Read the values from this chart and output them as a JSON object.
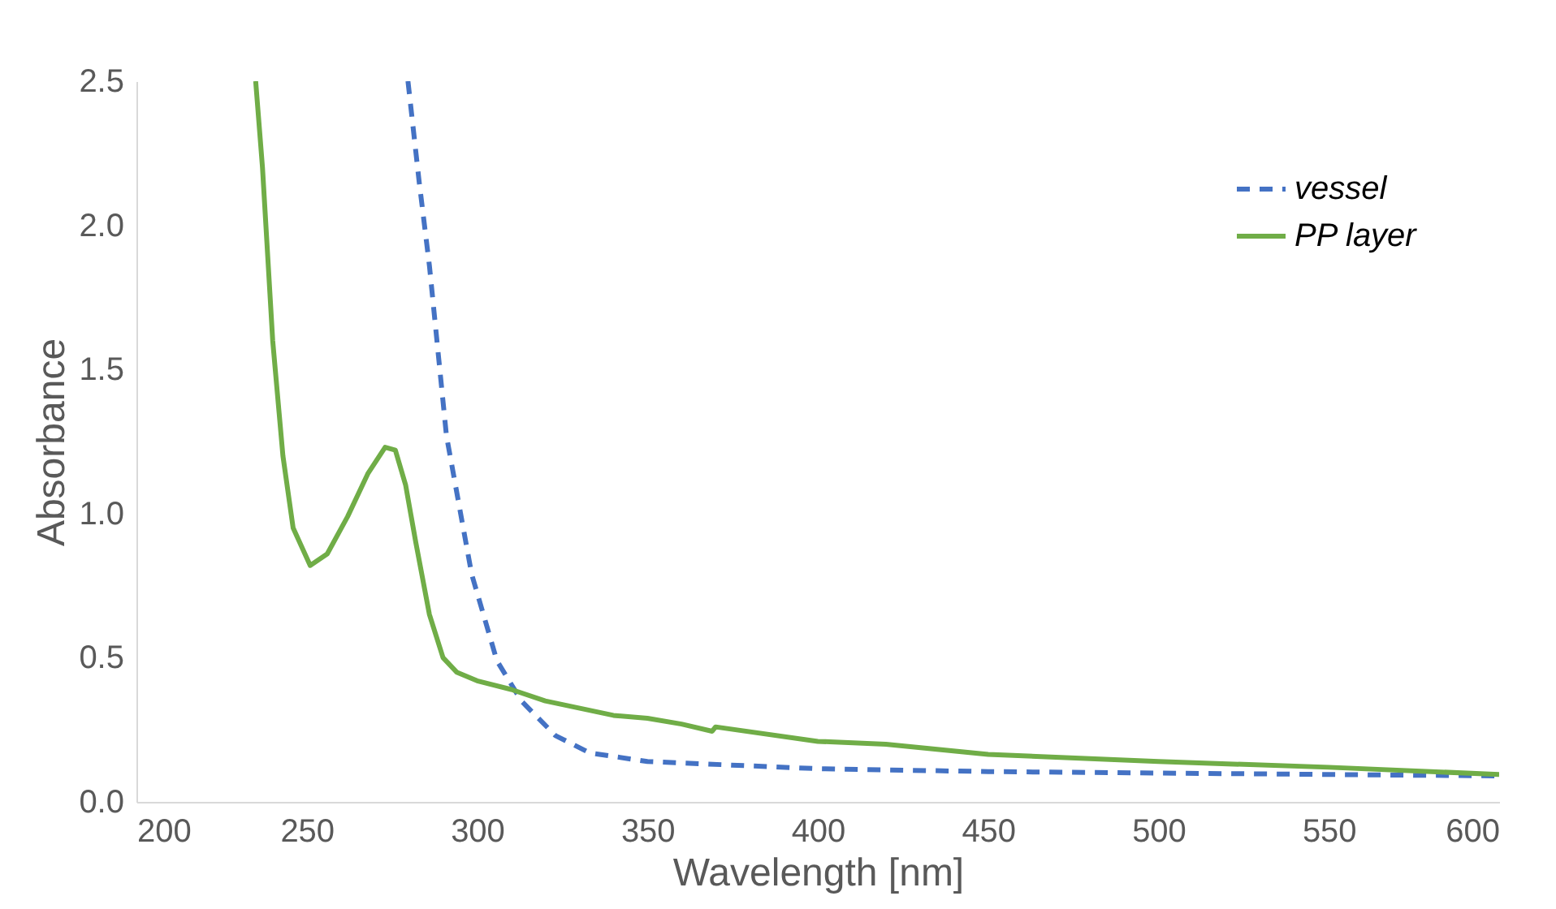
{
  "chart_data": {
    "type": "line",
    "xlabel": "Wavelength [nm]",
    "ylabel": "Absorbance",
    "xlim": [
      200,
      600
    ],
    "ylim": [
      0,
      2.5
    ],
    "xticks": [
      200,
      250,
      300,
      350,
      400,
      450,
      500,
      550,
      600
    ],
    "yticks": [
      {
        "value": 0,
        "label": "0.0"
      },
      0.5,
      {
        "value": 1,
        "label": "1.0"
      },
      1.5,
      {
        "value": 2,
        "label": "2.0"
      },
      2.5
    ],
    "grid": false,
    "legend": "top right",
    "marker": "none",
    "series": [
      {
        "name": "vessel",
        "color": "#4472c4",
        "line_style": "dashed",
        "x": [
          279.7,
          283,
          286,
          291,
          298.4,
          305.8,
          313,
          323,
          333,
          350,
          400,
          450,
          500,
          550,
          600
        ],
        "values": [
          2.5,
          2.15,
          1.86,
          1.27,
          0.79,
          0.49,
          0.35,
          0.23,
          0.17,
          0.14,
          0.115,
          0.105,
          0.1,
          0.095,
          0.09
        ]
      },
      {
        "name": "PP layer",
        "color": "#70ad47",
        "line_style": "solid",
        "x": [
          235,
          237,
          240,
          243,
          246,
          251,
          256,
          262,
          268,
          273,
          276,
          279,
          282,
          286,
          290,
          294,
          300,
          310,
          320,
          340,
          350,
          360,
          369,
          370,
          400,
          420,
          450,
          500,
          550,
          600
        ],
        "values": [
          2.5,
          2.2,
          1.6,
          1.2,
          0.95,
          0.82,
          0.86,
          0.99,
          1.14,
          1.23,
          1.22,
          1.1,
          0.9,
          0.65,
          0.5,
          0.45,
          0.42,
          0.39,
          0.35,
          0.3,
          0.29,
          0.27,
          0.245,
          0.26,
          0.21,
          0.2,
          0.165,
          0.14,
          0.12,
          0.095
        ]
      }
    ]
  }
}
